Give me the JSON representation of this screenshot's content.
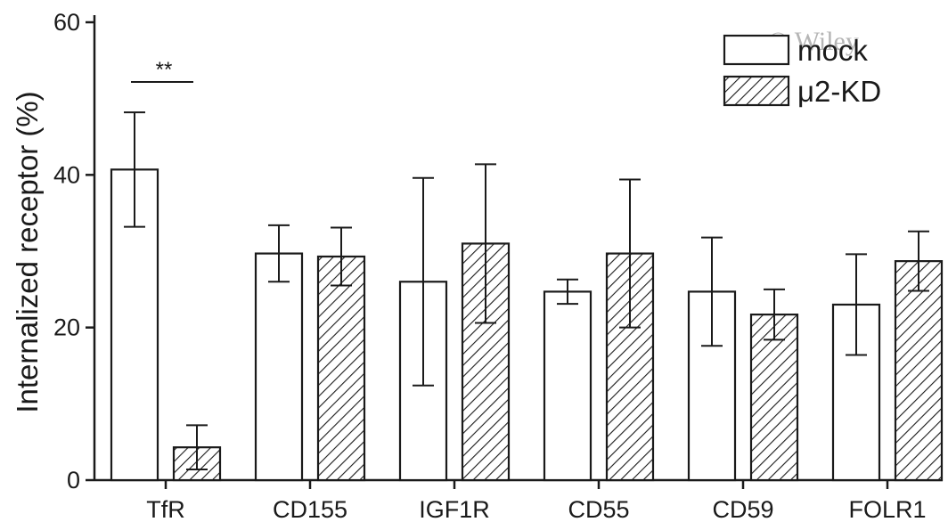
{
  "chart_data": {
    "type": "bar",
    "ylabel": "Internalized receptor (%)",
    "ylim": [
      0,
      60
    ],
    "yticks": [
      0,
      20,
      40,
      60
    ],
    "categories": [
      "TfR",
      "CD155",
      "IGF1R",
      "CD55",
      "CD59",
      "FOLR1"
    ],
    "series": [
      {
        "name": "mock",
        "pattern": "open",
        "values": [
          40.7,
          29.7,
          26.0,
          24.7,
          24.7,
          23.0
        ],
        "errors": [
          7.5,
          3.7,
          13.6,
          1.6,
          7.1,
          6.6
        ]
      },
      {
        "name": "μ2-KD",
        "pattern": "hatched",
        "values": [
          4.3,
          29.3,
          31.0,
          29.7,
          21.7,
          28.7
        ],
        "errors": [
          2.9,
          3.8,
          10.4,
          9.7,
          3.3,
          3.9
        ]
      }
    ],
    "annotations": [
      {
        "text": "**",
        "category": "TfR"
      }
    ],
    "legend_position": "top-right",
    "grid": false
  },
  "watermark": "© Wiley",
  "colors": {
    "axis": "#1a1a1a",
    "bar_fill": "#ffffff",
    "hatch": "#1a1a1a"
  }
}
